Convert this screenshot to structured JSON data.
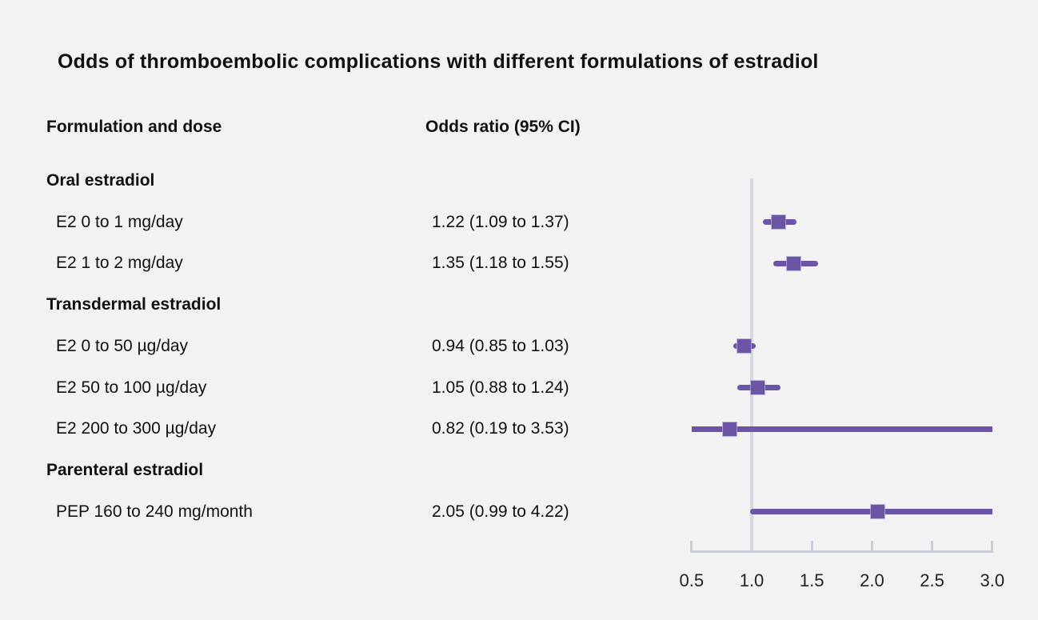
{
  "figure": {
    "title": "Odds of thromboembolic complications with different formulations of estradiol",
    "column_headers": {
      "formulation": "Formulation and dose",
      "odds_ratio": "Odds ratio (95% CI)"
    }
  },
  "chart_data": {
    "type": "forest",
    "title": "Odds of thromboembolic complications with different formulations of estradiol",
    "xlabel": "",
    "x_axis": {
      "tick_labels": [
        "0.5",
        "1.0",
        "1.5",
        "2.0",
        "2.5",
        "3.0"
      ],
      "tick_values": [
        0.5,
        1.0,
        1.5,
        2.0,
        2.5,
        3.0
      ],
      "range": [
        0.5,
        3.0
      ],
      "reference_line": 1.0
    },
    "groups": [
      {
        "label": "Oral estradiol",
        "rows": [
          {
            "label": "E2 0 to 1 mg/day",
            "value_text": "1.22 (1.09 to 1.37)",
            "or": 1.22,
            "ci_low": 1.09,
            "ci_high": 1.37
          },
          {
            "label": "E2 1 to 2 mg/day",
            "value_text": "1.35 (1.18 to 1.55)",
            "or": 1.35,
            "ci_low": 1.18,
            "ci_high": 1.55
          }
        ]
      },
      {
        "label": "Transdermal estradiol",
        "rows": [
          {
            "label": "E2 0 to 50 µg/day",
            "value_text": "0.94 (0.85 to 1.03)",
            "or": 0.94,
            "ci_low": 0.85,
            "ci_high": 1.03
          },
          {
            "label": "E2 50 to 100 µg/day",
            "value_text": "1.05 (0.88 to 1.24)",
            "or": 1.05,
            "ci_low": 0.88,
            "ci_high": 1.24
          },
          {
            "label": "E2 200 to 300 µg/day",
            "value_text": "0.82 (0.19 to 3.53)",
            "or": 0.82,
            "ci_low": 0.19,
            "ci_high": 3.53
          }
        ]
      },
      {
        "label": "Parenteral estradiol",
        "rows": [
          {
            "label": "PEP 160 to 240 mg/month",
            "value_text": "2.05 (0.99 to 4.22)",
            "or": 2.05,
            "ci_low": 0.99,
            "ci_high": 4.22
          }
        ]
      }
    ],
    "colors": {
      "marker": "#6b55a4",
      "ci_line": "#6b55a4",
      "axis_line": "#c9ced8",
      "reference_line": "#d5d8e0",
      "background": "#f2f2f2",
      "text": "#111111"
    }
  }
}
